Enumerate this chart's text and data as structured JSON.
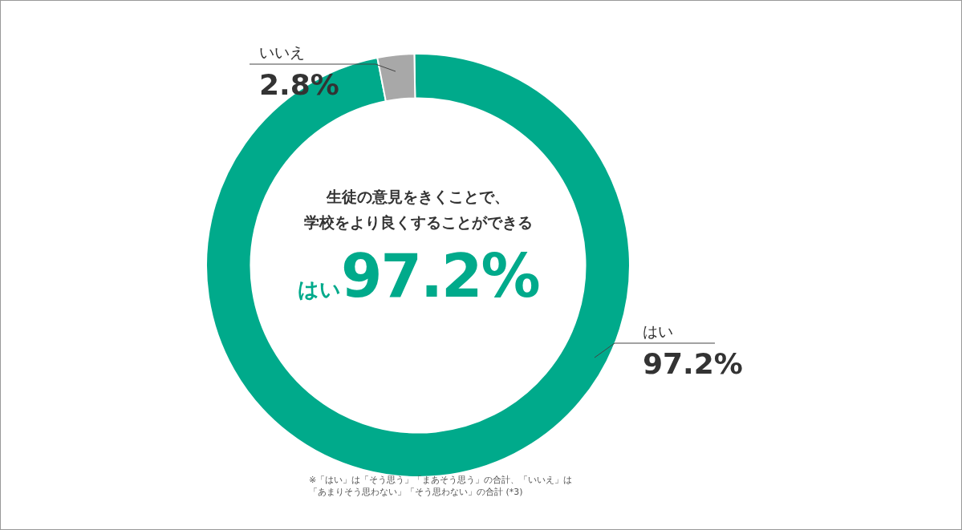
{
  "chart_data": {
    "type": "donut",
    "title": "生徒の意見をきくことで、学校をより良くすることができる",
    "categories": [
      "はい",
      "いいえ"
    ],
    "values": [
      97.2,
      2.8
    ],
    "colors": [
      "#00aa8b",
      "#a8a8a8"
    ],
    "value_labels": [
      "97.2%",
      "2.8%"
    ],
    "legend": false,
    "annotations": [
      "※「はい」は「そう思う」「まあそう思う」の合計、「いいえ」は「あまりそう思わない」「そう思わない」の合計 (*3)"
    ]
  }
}
